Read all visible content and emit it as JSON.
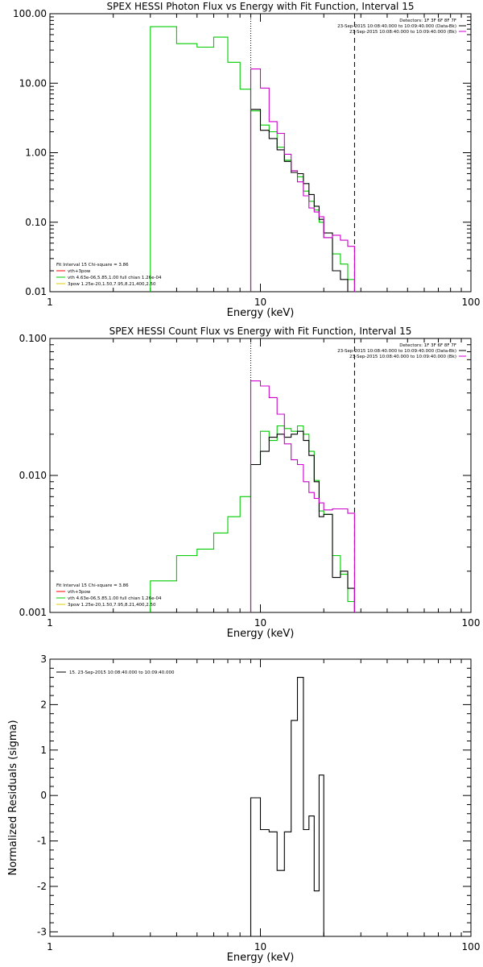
{
  "chart_data": [
    {
      "type": "line",
      "title": "SPEX HESSI Photon Flux vs Energy with Fit Function, Interval 15",
      "xlabel": "Energy (keV)",
      "ylabel": "",
      "x_scale": "log",
      "y_scale": "log",
      "xlim": [
        1,
        100
      ],
      "ylim": [
        0.01,
        100
      ],
      "xticks": [
        {
          "v": 1,
          "label": "1"
        },
        {
          "v": 10,
          "label": "10"
        },
        {
          "v": 100,
          "label": "100"
        }
      ],
      "yticks": [
        {
          "v": 0.01,
          "label": "0.01"
        },
        {
          "v": 0.1,
          "label": "0.10"
        },
        {
          "v": 1,
          "label": "1.00"
        },
        {
          "v": 10,
          "label": "10.00"
        },
        {
          "v": 100,
          "label": "100.00"
        }
      ],
      "vlines": [
        {
          "x": 9,
          "style": "dotted"
        },
        {
          "x": 28,
          "style": "dashed"
        }
      ],
      "legend_top_right": [
        {
          "text": "Detectors: 1F 3F 6F 8F 7F",
          "color": ""
        },
        {
          "text": "23-Sep-2015 10:08:40.000 to 10:09:40.000 (Data-Bk)",
          "color": "#000000"
        },
        {
          "text": "23-Sep-2015 10:08:40.000 to 10:09:40.000 (Bk)",
          "color": "#cc00cc"
        }
      ],
      "legend_bottom_left": [
        {
          "text": "Fit Interval 15   Chi-square = 3.86",
          "color": ""
        },
        {
          "text": "vth+3pow",
          "color": "#ff0000"
        },
        {
          "text": "vth 4.63e-06,5.85,1.00   full chian 1.26e-04",
          "color": "#00cc00"
        },
        {
          "text": "3pow 1.25e-20,1.50,7.95,8.21,400,2.50",
          "color": "#ddcc00"
        }
      ],
      "edges": [
        3,
        4,
        5,
        6,
        7,
        8,
        9,
        10,
        11,
        12,
        13,
        14,
        15,
        16,
        17,
        18,
        19,
        20,
        22,
        24,
        26,
        28
      ],
      "series": [
        {
          "color": "#00cc00",
          "values": [
            65,
            37,
            33,
            46,
            20,
            8.2,
            4.0,
            2.5,
            2.0,
            1.2,
            0.78,
            0.55,
            0.45,
            0.28,
            0.2,
            0.15,
            0.1,
            0.06,
            0.035,
            0.025,
            0.015
          ]
        },
        {
          "color": "#000000",
          "start": 6,
          "values": [
            4.2,
            2.1,
            1.6,
            1.1,
            0.75,
            0.52,
            0.5,
            0.36,
            0.25,
            0.17,
            0.11,
            0.07,
            0.02,
            0.015,
            0.01
          ]
        },
        {
          "color": "#cc00cc",
          "start": 6,
          "values": [
            16,
            8.5,
            2.8,
            1.9,
            0.95,
            0.55,
            0.38,
            0.24,
            0.16,
            0.14,
            0.12,
            0.06,
            0.065,
            0.055,
            0.045
          ]
        }
      ]
    },
    {
      "type": "line",
      "title": "SPEX HESSI Count Flux vs Energy with Fit Function, Interval 15",
      "xlabel": "Energy (keV)",
      "ylabel": "",
      "x_scale": "log",
      "y_scale": "log",
      "xlim": [
        1,
        100
      ],
      "ylim": [
        0.001,
        0.1
      ],
      "xticks": [
        {
          "v": 1,
          "label": "1"
        },
        {
          "v": 10,
          "label": "10"
        },
        {
          "v": 100,
          "label": "100"
        }
      ],
      "yticks": [
        {
          "v": 0.001,
          "label": "0.001"
        },
        {
          "v": 0.01,
          "label": "0.010"
        },
        {
          "v": 0.1,
          "label": "0.100"
        }
      ],
      "vlines": [
        {
          "x": 9,
          "style": "dotted"
        },
        {
          "x": 28,
          "style": "dashed"
        }
      ],
      "legend_top_right": [
        {
          "text": "Detectors: 1F 3F 6F 8F 7F",
          "color": ""
        },
        {
          "text": "23-Sep-2015 10:08:40.000 to 10:09:40.000 (Data-Bk)",
          "color": "#000000"
        },
        {
          "text": "23-Sep-2015 10:08:40.000 to 10:09:40.000 (Bk)",
          "color": "#cc00cc"
        }
      ],
      "legend_bottom_left": [
        {
          "text": "Fit Interval 15   Chi-square = 3.86",
          "color": ""
        },
        {
          "text": "vth+3pow",
          "color": "#ff0000"
        },
        {
          "text": "vth 4.63e-06,5.85,1.00   full chian 1.26e-04",
          "color": "#00cc00"
        },
        {
          "text": "3pow 1.25e-20,1.50,7.95,8.21,400,2.50",
          "color": "#ddcc00"
        }
      ],
      "edges": [
        3,
        4,
        5,
        6,
        7,
        8,
        9,
        10,
        11,
        12,
        13,
        14,
        15,
        16,
        17,
        18,
        19,
        20,
        22,
        24,
        26,
        28
      ],
      "series": [
        {
          "color": "#00cc00",
          "values": [
            0.0017,
            0.0026,
            0.0029,
            0.0038,
            0.005,
            0.007,
            0.012,
            0.021,
            0.018,
            0.023,
            0.022,
            0.021,
            0.023,
            0.02,
            0.015,
            0.0092,
            0.0055,
            0.0052,
            0.0026,
            0.0019,
            0.0012
          ]
        },
        {
          "color": "#000000",
          "start": 6,
          "values": [
            0.012,
            0.015,
            0.019,
            0.02,
            0.019,
            0.02,
            0.021,
            0.018,
            0.014,
            0.009,
            0.005,
            0.0052,
            0.0018,
            0.002,
            0.0015
          ]
        },
        {
          "color": "#cc00cc",
          "start": 6,
          "values": [
            0.049,
            0.045,
            0.037,
            0.028,
            0.017,
            0.013,
            0.012,
            0.009,
            0.0075,
            0.0068,
            0.0063,
            0.0056,
            0.0057,
            0.0057,
            0.0053
          ]
        }
      ]
    },
    {
      "type": "line",
      "title": "",
      "xlabel": "Energy (keV)",
      "ylabel": "Normalized Residuals (sigma)",
      "x_scale": "log",
      "y_scale": "linear",
      "xlim": [
        1,
        100
      ],
      "ylim": [
        -3.1,
        3.0
      ],
      "xticks": [
        {
          "v": 1,
          "label": "1"
        },
        {
          "v": 10,
          "label": "10"
        },
        {
          "v": 100,
          "label": "100"
        }
      ],
      "yticks": [
        {
          "v": -3,
          "label": "-3"
        },
        {
          "v": -2,
          "label": "-2"
        },
        {
          "v": -1,
          "label": "-1"
        },
        {
          "v": 0,
          "label": "0"
        },
        {
          "v": 1,
          "label": "1"
        },
        {
          "v": 2,
          "label": "2"
        },
        {
          "v": 3,
          "label": "3"
        }
      ],
      "vlines": [],
      "legend_top_right": [],
      "legend_bottom_left": [],
      "legend_top_left": [
        {
          "text": "15. 23-Sep-2015 10:08:40.000 to 10:09:40.000",
          "color": "#000000"
        }
      ],
      "edges": [
        9,
        10,
        11,
        12,
        13,
        14,
        15,
        16,
        17,
        18,
        19,
        20,
        22,
        24,
        26,
        28
      ],
      "series": [
        {
          "color": "#000000",
          "values": [
            -0.05,
            -0.75,
            -0.8,
            -1.65,
            -0.8,
            1.65,
            2.6,
            -0.75,
            -0.45,
            -2.1,
            0.45
          ]
        }
      ]
    }
  ]
}
